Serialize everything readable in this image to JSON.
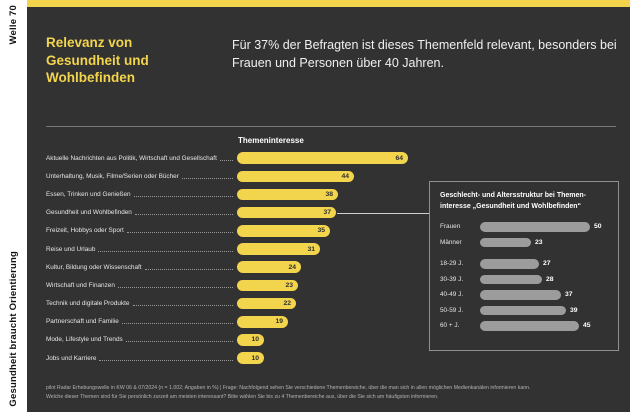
{
  "sidebar": {
    "top_label": "Welle 70",
    "bottom_label": "Gesundheit braucht Orientierung"
  },
  "header": {
    "title": "Relevanz von Gesundheit und Wohlbefinden",
    "subtitle": "Für 37% der Befragten ist dieses Themenfeld relevant, besonders bei Frauen und Personen über 40 Jahren."
  },
  "chart_data": [
    {
      "type": "bar",
      "orientation": "horizontal",
      "title": "Themeninteresse",
      "unit": "%",
      "categories": [
        "Aktuelle Nachrichten aus Politik, Wirtschaft und Gesellschaft",
        "Unterhaltung, Musik, Filme/Serien oder Bücher",
        "Essen, Trinken und Genießen",
        "Gesundheit und Wohlbefinden",
        "Freizeit, Hobbys oder Sport",
        "Reise und Urlaub",
        "Kultur, Bildung oder Wissenschaft",
        "Wirtschaft und Finanzen",
        "Technik und digitale Produkte",
        "Partnerschaft und Familie",
        "Mode, Lifestyle und Trends",
        "Jobs und Karriere"
      ],
      "values": [
        64,
        44,
        38,
        37,
        35,
        31,
        24,
        23,
        22,
        19,
        10,
        10
      ],
      "xlim": [
        0,
        70
      ],
      "bar_color": "#F2D44D",
      "value_label_position": "inside-end",
      "highlighted_category": "Gesundheit und Wohlbefinden",
      "grid": false,
      "legend": false
    },
    {
      "type": "bar",
      "orientation": "horizontal",
      "title": "Geschlecht- und Altersstruktur bei Themeninteresse „Gesundheit und Wohlbefinden“",
      "unit": "%",
      "categories": [
        "Frauen",
        "Männer",
        "18-29 J.",
        "30-39 J.",
        "40-49 J.",
        "50-59 J.",
        "60 + J."
      ],
      "values": [
        50,
        23,
        27,
        28,
        37,
        39,
        45
      ],
      "xlim": [
        0,
        55
      ],
      "bar_color": "#9C9C9C",
      "value_label_position": "outside-end",
      "group_break_before": "18-29 J.",
      "grid": false,
      "legend": false
    }
  ],
  "inset_box": {
    "title_line1": "Geschlecht- und Altersstruktur bei Themen-",
    "title_line2": "interesse „Gesundheit und Wohlbefinden“"
  },
  "footer": {
    "line1": "pilot Radar Erhebungswelle in KW 06 & 07/2024 (n = 1.002; Angaben in %) | Frage: Nachfolgend sehen Sie verschiedene Themenbereiche, über die man sich in allen möglichen Medienkanälen informieren kann.",
    "line2": "Welche dieser Themen sind für Sie persönlich zurzeit am meisten interessant? Bitte wählen Sie bis zu 4 Themenbereiche aus, über die Sie sich am häufigsten informieren."
  },
  "colors": {
    "background": "#323232",
    "accent_yellow": "#F2D44D",
    "inset_bar_gray": "#9C9C9C",
    "sidebar_background": "#FFFFFF",
    "divider_gray": "#787878"
  }
}
